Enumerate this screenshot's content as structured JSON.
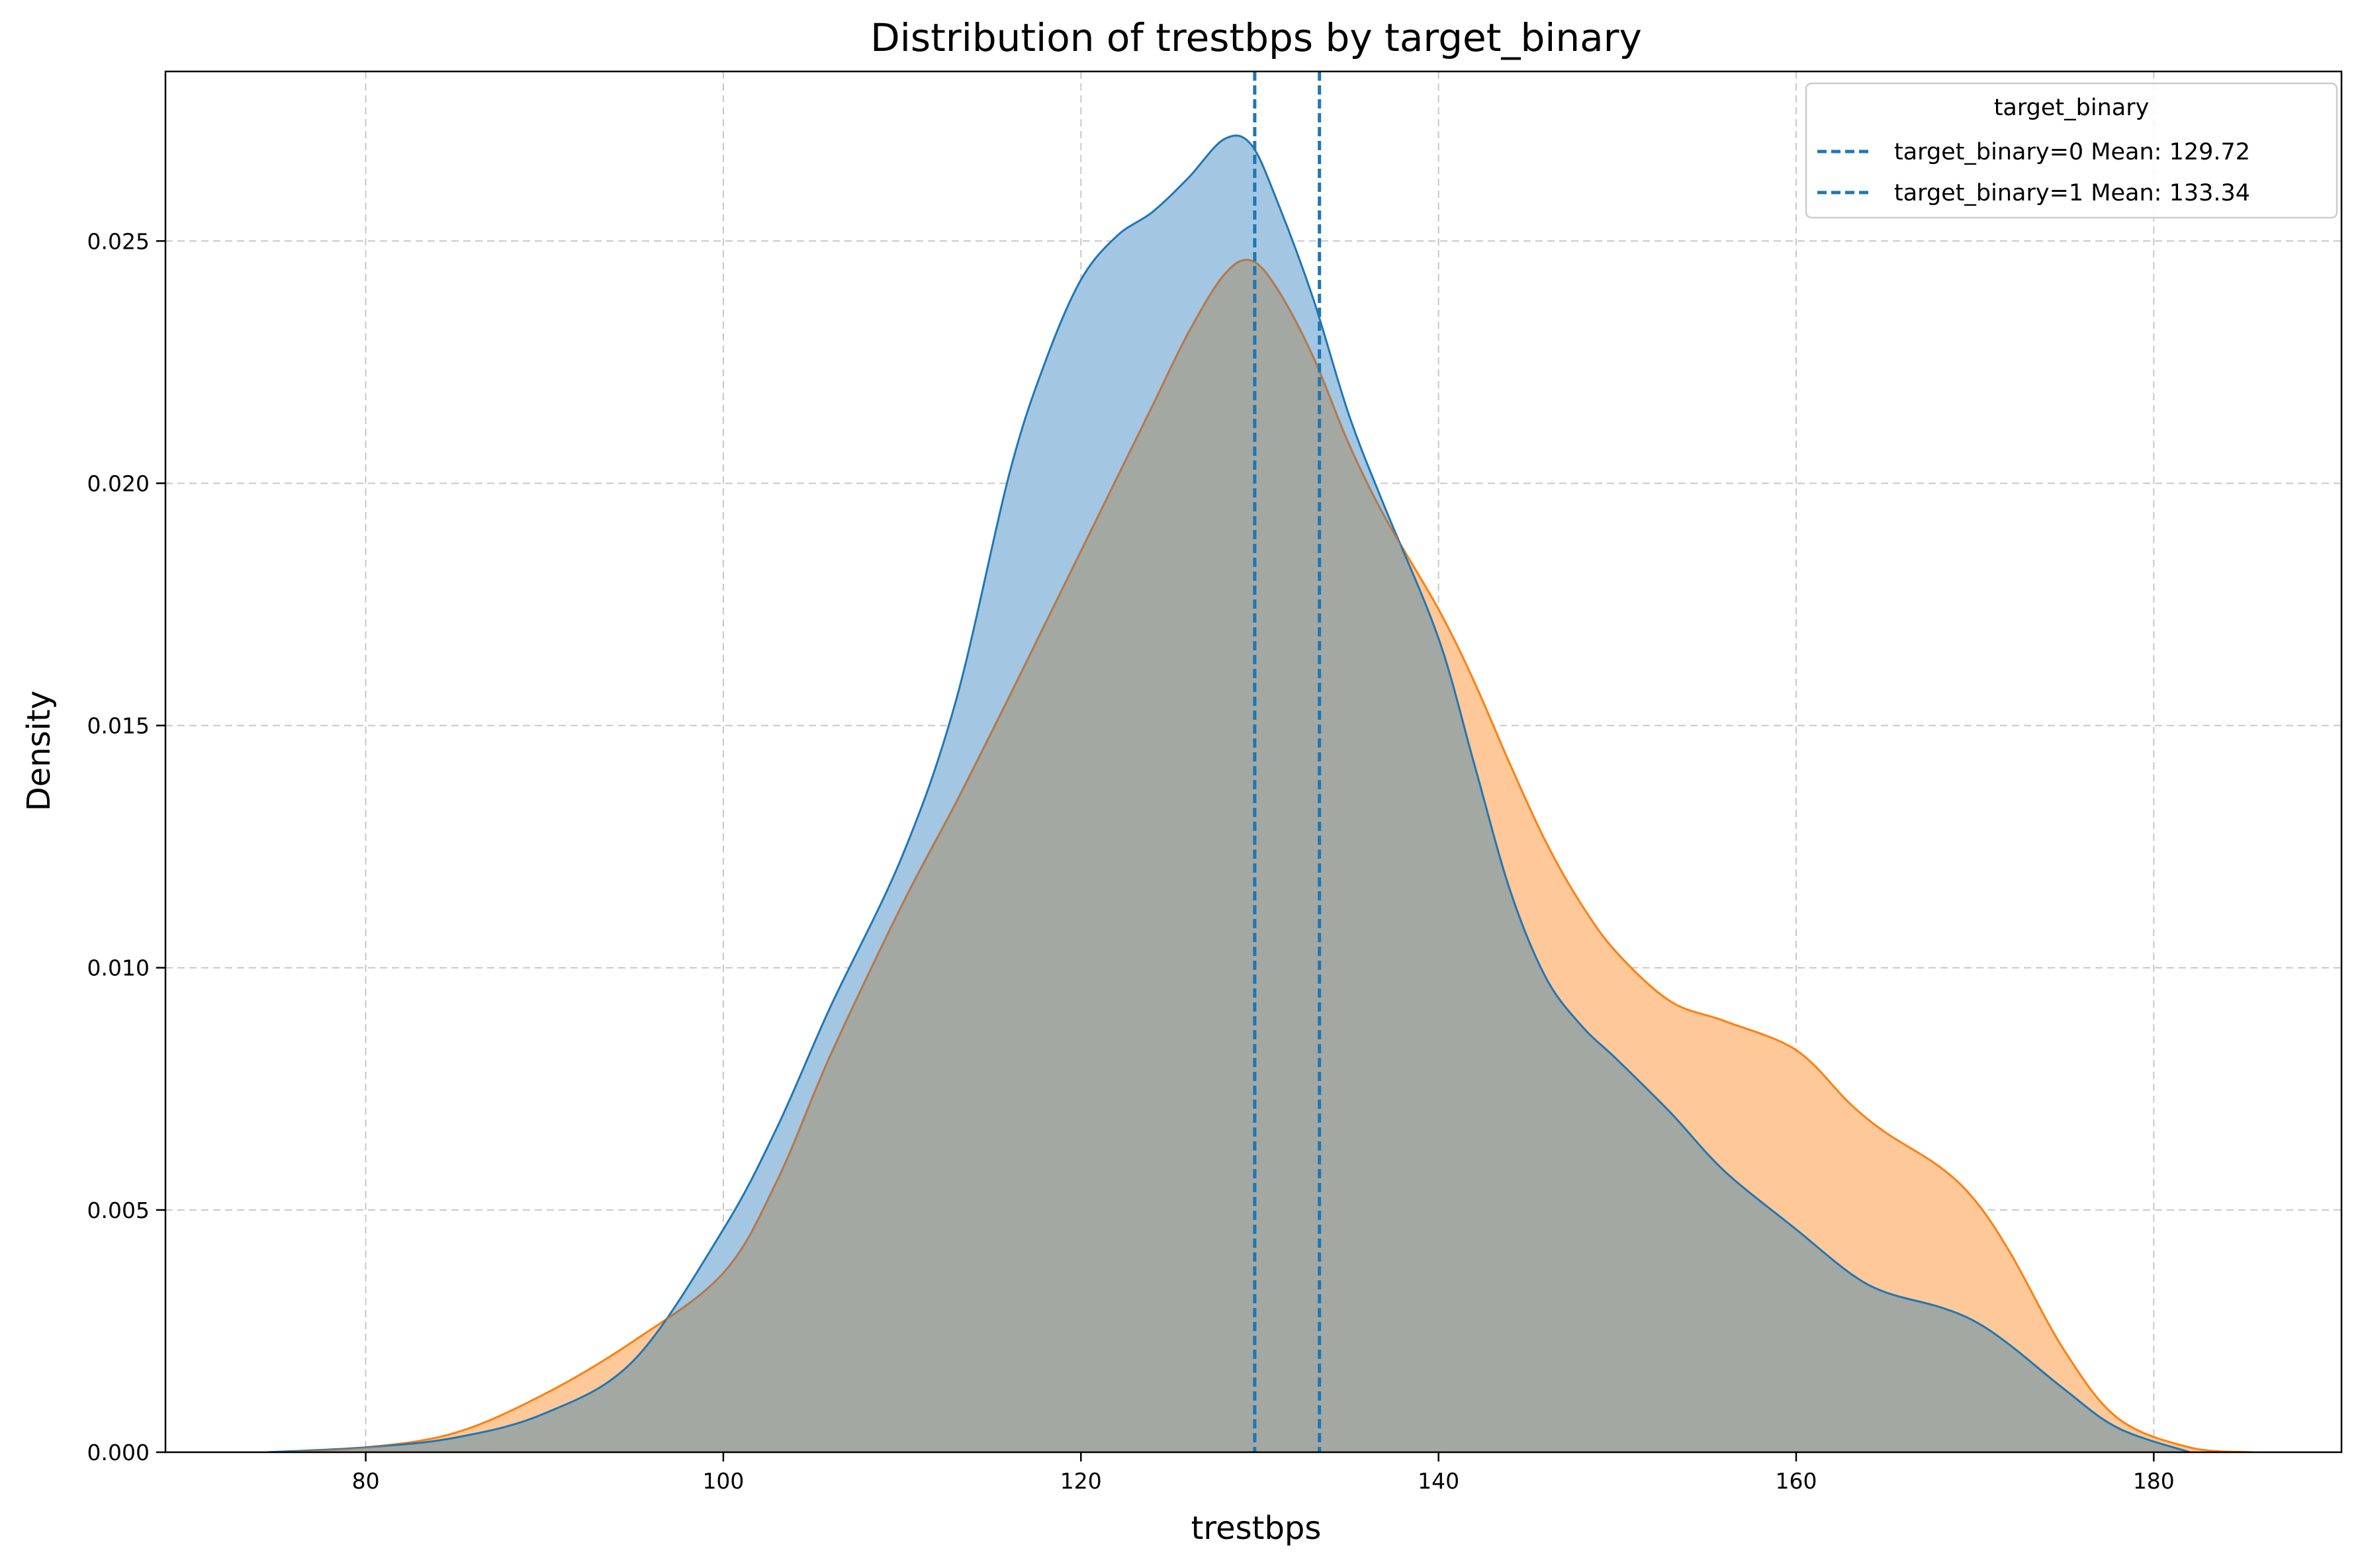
{
  "chart_data": {
    "type": "area",
    "title": "Distribution of trestbps by target_binary",
    "xlabel": "trestbps",
    "ylabel": "Density",
    "xlim": [
      68.8,
      190.5
    ],
    "ylim": [
      0,
      0.0285
    ],
    "x_ticks": [
      "80",
      "100",
      "120",
      "140",
      "160",
      "180"
    ],
    "y_ticks": [
      "0.000",
      "0.005",
      "0.010",
      "0.015",
      "0.020",
      "0.025"
    ],
    "grid": true,
    "legend": {
      "title": "target_binary",
      "placement": "top-right",
      "entries": [
        "target_binary=0 Mean: 129.72",
        "target_binary=1 Mean: 133.34"
      ]
    },
    "series": [
      {
        "key": "target_binary=0",
        "color": "#1f77b4",
        "fill": "#a3c6e2",
        "mean": 129.72,
        "x": [
          74.5,
          80,
          85,
          90,
          95,
          100,
          103,
          106,
          110,
          113,
          116,
          118,
          120,
          122,
          124,
          126,
          128,
          129.5,
          131,
          133,
          135,
          137,
          140,
          142,
          144,
          146,
          148,
          150,
          153,
          156,
          160,
          163,
          165,
          168,
          170,
          172,
          175,
          178,
          182
        ],
        "y": [
          0.0,
          0.0001,
          0.0003,
          0.0008,
          0.0019,
          0.0046,
          0.0067,
          0.0092,
          0.0123,
          0.0155,
          0.0202,
          0.0225,
          0.0242,
          0.0251,
          0.0256,
          0.0263,
          0.0271,
          0.027,
          0.0258,
          0.0238,
          0.0214,
          0.0195,
          0.0168,
          0.0142,
          0.0116,
          0.0098,
          0.0088,
          0.0081,
          0.007,
          0.0058,
          0.0046,
          0.0037,
          0.0033,
          0.003,
          0.0027,
          0.0022,
          0.0013,
          0.0005,
          0.0
        ]
      },
      {
        "key": "target_binary=1",
        "color": "#ff7f0e",
        "fill": "#ffc899",
        "mean": 133.34,
        "x": [
          74.5,
          80,
          85,
          90,
          95,
          100,
          103,
          106,
          110,
          113,
          116,
          118,
          120,
          122,
          124,
          126,
          128,
          129.5,
          131,
          133,
          135,
          137,
          140,
          142,
          144,
          146,
          148,
          150,
          153,
          156,
          160,
          163,
          165,
          168,
          170,
          172,
          175,
          178,
          182,
          185.5
        ],
        "y": [
          0.0,
          0.0001,
          0.0004,
          0.0012,
          0.0023,
          0.0037,
          0.0056,
          0.0082,
          0.0113,
          0.0134,
          0.0156,
          0.0171,
          0.0186,
          0.0201,
          0.0216,
          0.0231,
          0.0243,
          0.0246,
          0.024,
          0.0226,
          0.0208,
          0.0193,
          0.0174,
          0.0159,
          0.0142,
          0.0126,
          0.0113,
          0.0103,
          0.0093,
          0.0089,
          0.0083,
          0.0072,
          0.0066,
          0.0059,
          0.0052,
          0.0041,
          0.0021,
          0.0007,
          0.0001,
          0.0
        ]
      }
    ],
    "overlap_color": "#a3a8a2",
    "mean_line_color": "#1f77b4"
  }
}
